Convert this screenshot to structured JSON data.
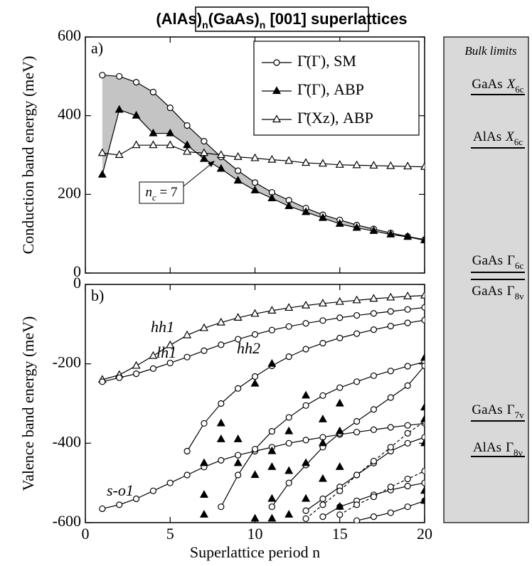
{
  "title": [
    "(AlAs)",
    "n",
    "(GaAs)",
    "n",
    " [001] superlattices"
  ],
  "bulk_limits": {
    "title": "Bulk limits",
    "labels": [
      {
        "material": "GaAs",
        "symbol": "X",
        "sub": "6c"
      },
      {
        "material": "AlAs",
        "symbol": "X",
        "sub": "6c"
      },
      {
        "material": "GaAs",
        "symbol": "Γ",
        "sub": "6c"
      },
      {
        "material": "GaAs",
        "symbol": "Γ",
        "sub": "8v"
      },
      {
        "material": "GaAs",
        "symbol": "Γ",
        "sub": "7v"
      },
      {
        "material": "AlAs",
        "symbol": "Γ",
        "sub": "8v"
      }
    ]
  },
  "chart_data": [
    {
      "type": "line",
      "panel_label": "a)",
      "ylabel": "Conduction band energy (meV)",
      "xlim": [
        0,
        20
      ],
      "ylim": [
        0,
        600
      ],
      "xticks": [
        0,
        5,
        10,
        15,
        20
      ],
      "yticks": [
        0,
        200,
        400,
        600
      ],
      "shaded": true,
      "legend": "upper right",
      "annotation": [
        "n",
        "c",
        " = 7"
      ],
      "series": [
        {
          "name": "Γ̄(Γ), SM",
          "color": "#000000",
          "marker": "circle-open",
          "x": [
            1,
            2,
            3,
            4,
            5,
            6,
            7,
            8,
            9,
            10,
            11,
            12,
            13,
            14,
            15,
            16,
            17,
            18,
            19,
            20
          ],
          "values": [
            503,
            500,
            485,
            460,
            420,
            375,
            335,
            295,
            260,
            230,
            205,
            185,
            165,
            148,
            135,
            122,
            112,
            102,
            93,
            85
          ]
        },
        {
          "name": "Γ̄(Γ), ABP",
          "color": "#000000",
          "marker": "triangle-filled",
          "x": [
            1,
            2,
            3,
            4,
            5,
            6,
            7,
            8,
            9,
            10,
            11,
            12,
            13,
            14,
            15,
            16,
            17,
            18,
            19,
            20
          ],
          "values": [
            250,
            415,
            400,
            355,
            355,
            325,
            290,
            265,
            235,
            210,
            190,
            170,
            155,
            140,
            125,
            115,
            107,
            98,
            92,
            83
          ]
        },
        {
          "name": "Γ̄(Xz), ABP",
          "color": "#000000",
          "marker": "triangle-open",
          "x": [
            1,
            2,
            3,
            4,
            5,
            6,
            7,
            8,
            9,
            10,
            11,
            12,
            13,
            14,
            15,
            16,
            17,
            18,
            19,
            20
          ],
          "values": [
            305,
            300,
            325,
            325,
            325,
            308,
            305,
            300,
            295,
            292,
            288,
            285,
            280,
            278,
            275,
            274,
            273,
            272,
            271,
            270
          ]
        }
      ]
    },
    {
      "type": "line",
      "panel_label": "b)",
      "ylabel": "Valence band energy (meV)",
      "xlabel": "Superlattice period n",
      "xlim": [
        0,
        20
      ],
      "ylim": [
        -600,
        0
      ],
      "xticks": [
        0,
        5,
        10,
        15,
        20
      ],
      "yticks": [
        -600,
        -400,
        -200,
        0
      ],
      "series": [
        {
          "name": "hh1",
          "color": "#000000",
          "marker": "triangle-open",
          "x": [
            1,
            2,
            3,
            4,
            5,
            6,
            7,
            8,
            9,
            10,
            11,
            12,
            13,
            14,
            15,
            16,
            17,
            18,
            19,
            20
          ],
          "values": [
            -240,
            -228,
            -205,
            -180,
            -153,
            -128,
            -110,
            -96,
            -84,
            -74,
            -66,
            -59,
            -53,
            -48,
            -44,
            -40,
            -36,
            -33,
            -30,
            -28
          ]
        },
        {
          "name": "lh1",
          "color": "#000000",
          "marker": "circle-open",
          "x": [
            1,
            2,
            3,
            4,
            5,
            6,
            7,
            8,
            9,
            10,
            11,
            12,
            13,
            14,
            15,
            16,
            17,
            18,
            19,
            20
          ],
          "values": [
            -245,
            -235,
            -225,
            -212,
            -198,
            -183,
            -167,
            -152,
            -138,
            -126,
            -115,
            -106,
            -98,
            -91,
            -84,
            -78,
            -73,
            -68,
            -63,
            -58
          ]
        },
        {
          "name": "hh2",
          "color": "#000000",
          "marker": "circle-open",
          "x": [
            1,
            2,
            3,
            4,
            5,
            6,
            7,
            8,
            9,
            10,
            11,
            12,
            13,
            14,
            15,
            16,
            17,
            18,
            19,
            20
          ],
          "values": [
            null,
            null,
            null,
            null,
            null,
            -420,
            -350,
            -300,
            -262,
            -232,
            -205,
            -182,
            -163,
            -148,
            -135,
            -124,
            -114,
            -105,
            -97,
            -90
          ]
        },
        {
          "name": "s-o1",
          "color": "#000000",
          "marker": "circle-open",
          "x": [
            1,
            2,
            3,
            4,
            5,
            6,
            7,
            8,
            9,
            10,
            11,
            12,
            13,
            14,
            15,
            16,
            17,
            18,
            19,
            20
          ],
          "values": [
            -565,
            -555,
            -540,
            -520,
            -500,
            -480,
            -460,
            -443,
            -430,
            -420,
            -410,
            -400,
            -392,
            -385,
            -378,
            -372,
            -366,
            -360,
            -355,
            -350
          ]
        },
        {
          "color": "#000000",
          "marker": "circle-open",
          "x": [
            1,
            2,
            3,
            4,
            5,
            6,
            7,
            8,
            9,
            10,
            11,
            12,
            13,
            14,
            15,
            16,
            17,
            18,
            19,
            20
          ],
          "values": [
            null,
            null,
            null,
            null,
            null,
            null,
            null,
            -560,
            -480,
            -415,
            -370,
            -335,
            -305,
            -280,
            -260,
            -245,
            -230,
            -218,
            -206,
            -195
          ]
        },
        {
          "color": "#000000",
          "marker": "circle-open",
          "x": [
            1,
            2,
            3,
            4,
            5,
            6,
            7,
            8,
            9,
            10,
            11,
            12,
            13,
            14,
            15,
            16,
            17,
            18,
            19,
            20
          ],
          "values": [
            null,
            null,
            null,
            null,
            null,
            null,
            null,
            null,
            null,
            null,
            -560,
            -500,
            -455,
            -410,
            -375,
            -345,
            -315,
            -285,
            -255,
            -205
          ]
        },
        {
          "color": "#000000",
          "marker": "circle-open",
          "x": [
            1,
            2,
            3,
            4,
            5,
            6,
            7,
            8,
            9,
            10,
            11,
            12,
            13,
            14,
            15,
            16,
            17,
            18,
            19,
            20
          ],
          "values": [
            null,
            null,
            null,
            null,
            null,
            null,
            null,
            null,
            null,
            null,
            null,
            null,
            -570,
            -540,
            -510,
            -480,
            -450,
            -420,
            -400,
            -385
          ]
        },
        {
          "color": "#000000",
          "marker": "circle-open",
          "dash": true,
          "x": [
            1,
            2,
            3,
            4,
            5,
            6,
            7,
            8,
            9,
            10,
            11,
            12,
            13,
            14,
            15,
            16,
            17,
            18,
            19,
            20
          ],
          "values": [
            null,
            null,
            null,
            null,
            null,
            null,
            null,
            null,
            null,
            null,
            null,
            null,
            -590,
            -555,
            -520,
            -480,
            -445,
            -410,
            -375,
            -345
          ]
        },
        {
          "color": "#000000",
          "marker": "circle-open",
          "x": [
            1,
            2,
            3,
            4,
            5,
            6,
            7,
            8,
            9,
            10,
            11,
            12,
            13,
            14,
            15,
            16,
            17,
            18,
            19,
            20
          ],
          "values": [
            null,
            null,
            null,
            null,
            null,
            null,
            null,
            null,
            null,
            null,
            null,
            null,
            null,
            -585,
            -560,
            -545,
            -530,
            -518,
            -508,
            -500
          ]
        },
        {
          "color": "#000000",
          "marker": "circle-open",
          "dash": true,
          "x": [
            1,
            2,
            3,
            4,
            5,
            6,
            7,
            8,
            9,
            10,
            11,
            12,
            13,
            14,
            15,
            16,
            17,
            18,
            19,
            20
          ],
          "values": [
            null,
            null,
            null,
            null,
            null,
            null,
            null,
            null,
            null,
            null,
            null,
            null,
            null,
            null,
            -580,
            -555,
            -535,
            -510,
            -490,
            -470
          ]
        },
        {
          "color": "#000000",
          "marker": "circle-open",
          "x": [
            1,
            2,
            3,
            4,
            5,
            6,
            7,
            8,
            9,
            10,
            11,
            12,
            13,
            14,
            15,
            16,
            17,
            18,
            19,
            20
          ],
          "values": [
            null,
            null,
            null,
            null,
            null,
            null,
            null,
            null,
            null,
            null,
            null,
            null,
            null,
            null,
            null,
            -595,
            -585,
            -575,
            -560,
            -545
          ]
        },
        {
          "color": "#000000",
          "marker": "triangle-filled",
          "mode": "markers",
          "x": [
            7,
            7,
            7,
            8,
            8,
            9,
            9,
            10,
            10,
            10,
            11,
            11,
            11,
            11,
            11,
            12,
            12,
            12,
            13,
            13,
            13,
            14,
            14,
            14,
            15,
            15,
            15,
            15,
            20,
            20,
            20,
            20,
            20,
            20
          ],
          "values": [
            -450,
            -530,
            -580,
            -350,
            -390,
            -390,
            -450,
            -250,
            -480,
            -590,
            -200,
            -420,
            -460,
            -540,
            -590,
            -370,
            -470,
            -580,
            -280,
            -450,
            -540,
            -340,
            -400,
            -490,
            -300,
            -370,
            -460,
            -560,
            -185,
            -310,
            -340,
            -400,
            -520,
            -545
          ]
        }
      ]
    }
  ]
}
